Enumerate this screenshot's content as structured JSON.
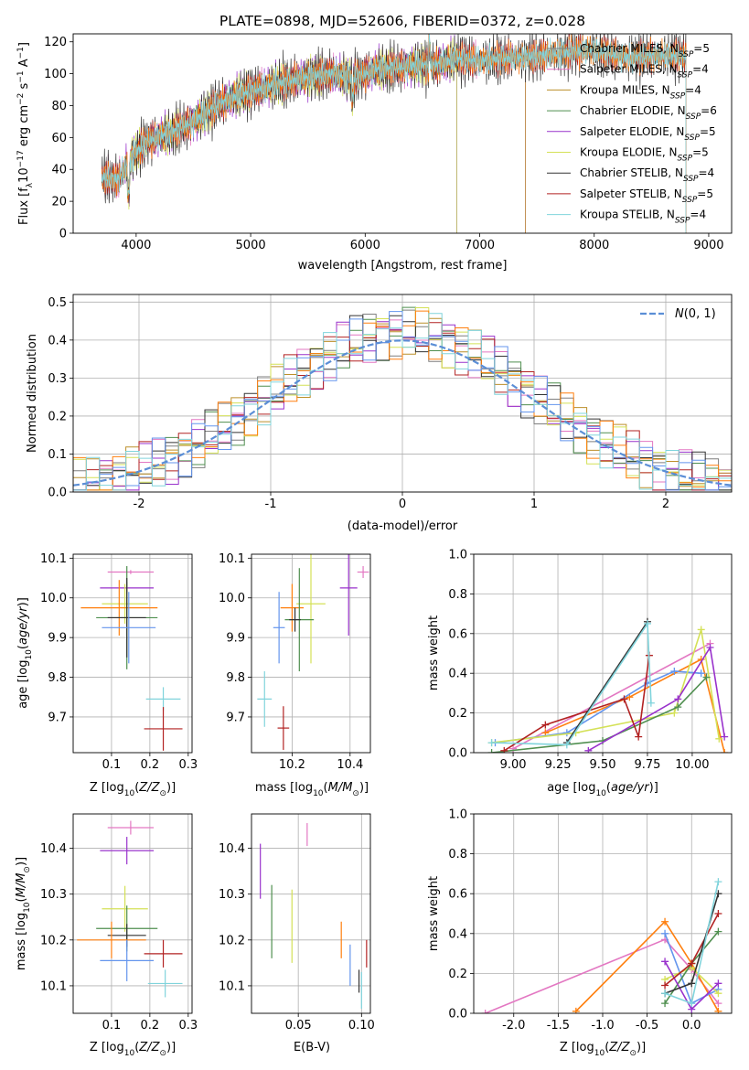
{
  "figure_title": "PLATE=0898, MJD=52606, FIBERID=0372, z=0.028",
  "colors": {
    "Chabrier MILES": "#7f7f7f",
    "Salpeter MILES": "#e377c2",
    "Kroupa MILES": "#bc8f2a",
    "Chabrier ELODIE": "#4f8f4f",
    "Salpeter ELODIE": "#9932cc",
    "Kroupa ELODIE": "#d4e157",
    "Chabrier STELIB": "#333333",
    "Salpeter STELIB": "#b22222",
    "Kroupa STELIB": "#80d4dc",
    "series_orange": "#ff7f0e",
    "series_blue": "#6495ed",
    "gaussian": "#5b8ed6"
  },
  "chart_data": [
    {
      "id": "spectrum",
      "type": "line",
      "title": "PLATE=0898, MJD=52606, FIBERID=0372, z=0.028",
      "xlabel": "wavelength [Angstrom, rest frame]",
      "ylabel": "Flux [f_λ 10^-17 erg cm^-2 s^-1 A^-1]",
      "xlim": [
        3450,
        9200
      ],
      "ylim": [
        0,
        125
      ],
      "xticks": [
        4000,
        5000,
        6000,
        7000,
        8000,
        9000
      ],
      "yticks": [
        0,
        20,
        40,
        60,
        80,
        100,
        120
      ],
      "grid": false,
      "legend_position": "upper-right",
      "legend": [
        "Chabrier MILES, N_SSP=5",
        "Salpeter MILES, N_SSP=4",
        "Kroupa MILES, N_SSP=4",
        "Chabrier ELODIE, N_SSP=6",
        "Salpeter ELODIE, N_SSP=5",
        "Kroupa ELODIE, N_SSP=5",
        "Chabrier STELIB, N_SSP=4",
        "Salpeter STELIB, N_SSP=5",
        "Kroupa STELIB, N_SSP=4"
      ],
      "continuum": [
        [
          3700,
          35
        ],
        [
          3850,
          34
        ],
        [
          3950,
          47
        ],
        [
          4100,
          58
        ],
        [
          4300,
          63
        ],
        [
          4500,
          70
        ],
        [
          4700,
          80
        ],
        [
          4900,
          87
        ],
        [
          5100,
          91
        ],
        [
          5300,
          95
        ],
        [
          5500,
          98
        ],
        [
          5700,
          100
        ],
        [
          5900,
          97
        ],
        [
          6100,
          103
        ],
        [
          6300,
          104
        ],
        [
          6500,
          106
        ],
        [
          6563,
          104
        ],
        [
          6800,
          110
        ],
        [
          7000,
          108
        ],
        [
          7200,
          110
        ],
        [
          7400,
          110
        ],
        [
          7700,
          113
        ],
        [
          8000,
          115
        ],
        [
          8300,
          110
        ],
        [
          8600,
          112
        ],
        [
          8800,
          111
        ],
        [
          9100,
          115
        ]
      ],
      "range_miles": [
        3700,
        7400
      ],
      "range_elodie": [
        3900,
        6800
      ],
      "range_stelib": [
        3700,
        8800
      ]
    },
    {
      "id": "residuals",
      "type": "histogram",
      "xlabel": "(data-model)/error",
      "ylabel": "Normed distribution",
      "xlim": [
        -2.5,
        2.5
      ],
      "ylim": [
        0,
        0.52
      ],
      "xticks": [
        -2,
        -1,
        0,
        1,
        2
      ],
      "yticks": [
        0.0,
        0.1,
        0.2,
        0.3,
        0.4,
        0.5
      ],
      "grid": true,
      "legend_position": "upper-right",
      "legend": [
        "N(0,1)"
      ],
      "bin_width": 0.1
    },
    {
      "id": "age_vs_z",
      "type": "scatter",
      "xlabel": "Z [log10(Z/Z_sun)]",
      "ylabel": "age  [log10(age/yr)]",
      "xlim": [
        0.0,
        0.31
      ],
      "ylim": [
        9.61,
        10.11
      ],
      "xticks": [
        0.1,
        0.2,
        0.3
      ],
      "yticks": [
        9.7,
        9.8,
        9.9,
        10.0,
        10.1
      ],
      "grid": true,
      "points": [
        {
          "series": "Salpeter MILES",
          "x": 0.15,
          "xerr": 0.06,
          "y": 10.065,
          "yerr": 0.005
        },
        {
          "series": "Salpeter ELODIE",
          "x": 0.14,
          "xerr": 0.07,
          "y": 10.025,
          "yerr": 0.015
        },
        {
          "series": "Kroupa ELODIE",
          "x": 0.135,
          "xerr": 0.06,
          "y": 9.985,
          "yerr": 0.05
        },
        {
          "series": "series_orange",
          "x": 0.12,
          "xerr": 0.1,
          "y": 9.975,
          "yerr": 0.07
        },
        {
          "series": "Chabrier ELODIE",
          "x": 0.14,
          "xerr": 0.08,
          "y": 9.95,
          "yerr": 0.13
        },
        {
          "series": "Chabrier STELIB",
          "x": 0.14,
          "xerr": 0.05,
          "y": 9.95,
          "yerr": 0.1
        },
        {
          "series": "series_blue",
          "x": 0.145,
          "xerr": 0.07,
          "y": 9.925,
          "yerr": 0.09
        },
        {
          "series": "Kroupa STELIB",
          "x": 0.235,
          "xerr": 0.045,
          "y": 9.745,
          "yerr": 0.03
        },
        {
          "series": "Salpeter STELIB",
          "x": 0.235,
          "xerr": 0.05,
          "y": 9.67,
          "yerr": 0.055
        }
      ]
    },
    {
      "id": "age_vs_mass",
      "type": "scatter",
      "xlabel": "mass [log10(M/M_sun)]",
      "ylabel": "",
      "xlim": [
        10.06,
        10.47
      ],
      "ylim": [
        9.61,
        10.11
      ],
      "xticks": [
        10.2,
        10.4
      ],
      "yticks": [
        9.7,
        9.8,
        9.9,
        10.0,
        10.1
      ],
      "grid": true,
      "points": [
        {
          "series": "Salpeter MILES",
          "x": 10.445,
          "xerr": 0.02,
          "y": 10.065,
          "yerr": 0.015
        },
        {
          "series": "Salpeter ELODIE",
          "x": 10.395,
          "xerr": 0.03,
          "y": 10.025,
          "yerr": 0.12
        },
        {
          "series": "Kroupa ELODIE",
          "x": 10.265,
          "xerr": 0.05,
          "y": 9.985,
          "yerr": 0.15
        },
        {
          "series": "series_orange",
          "x": 10.2,
          "xerr": 0.04,
          "y": 9.975,
          "yerr": 0.06
        },
        {
          "series": "Chabrier ELODIE",
          "x": 10.225,
          "xerr": 0.05,
          "y": 9.945,
          "yerr": 0.13
        },
        {
          "series": "Chabrier STELIB",
          "x": 10.21,
          "xerr": 0.02,
          "y": 9.945,
          "yerr": 0.03
        },
        {
          "series": "series_blue",
          "x": 10.155,
          "xerr": 0.02,
          "y": 9.925,
          "yerr": 0.09
        },
        {
          "series": "Kroupa STELIB",
          "x": 10.105,
          "xerr": 0.025,
          "y": 9.745,
          "yerr": 0.07
        },
        {
          "series": "Salpeter STELIB",
          "x": 10.17,
          "xerr": 0.02,
          "y": 9.672,
          "yerr": 0.055
        }
      ]
    },
    {
      "id": "weight_vs_age",
      "type": "line",
      "xlabel": "age  [log10(age/yr)]",
      "ylabel": "mass weight",
      "xlim": [
        8.78,
        10.22
      ],
      "ylim": [
        0.0,
        1.0
      ],
      "xticks": [
        9.0,
        9.25,
        9.5,
        9.75,
        10.0
      ],
      "yticks": [
        0.0,
        0.2,
        0.4,
        0.6,
        0.8,
        1.0
      ],
      "grid": true,
      "series": [
        {
          "name": "Salpeter MILES",
          "x": [
            9.0,
            10.1
          ],
          "y": [
            0.02,
            0.55
          ]
        },
        {
          "name": "series_orange",
          "x": [
            9.18,
            9.65,
            10.05,
            10.18
          ],
          "y": [
            0.1,
            0.28,
            0.47,
            0.0
          ]
        },
        {
          "name": "series_blue",
          "x": [
            8.9,
            9.3,
            9.75,
            9.9,
            10.05
          ],
          "y": [
            0.05,
            0.1,
            0.35,
            0.41,
            0.4
          ]
        },
        {
          "name": "Kroupa ELODIE",
          "x": [
            8.88,
            9.35,
            9.9,
            10.05,
            10.15
          ],
          "y": [
            0.05,
            0.1,
            0.2,
            0.62,
            0.07
          ]
        },
        {
          "name": "Chabrier ELODIE",
          "x": [
            8.88,
            9.5,
            9.92,
            10.08
          ],
          "y": [
            0.0,
            0.06,
            0.23,
            0.38
          ]
        },
        {
          "name": "Salpeter ELODIE",
          "x": [
            9.42,
            9.92,
            10.1,
            10.18
          ],
          "y": [
            0.01,
            0.27,
            0.53,
            0.08
          ]
        },
        {
          "name": "Salpeter STELIB",
          "x": [
            8.95,
            9.18,
            9.62,
            9.7,
            9.76
          ],
          "y": [
            0.01,
            0.14,
            0.27,
            0.08,
            0.49
          ]
        },
        {
          "name": "Chabrier STELIB",
          "x": [
            9.3,
            9.75
          ],
          "y": [
            0.05,
            0.66
          ]
        },
        {
          "name": "Kroupa STELIB",
          "x": [
            8.88,
            9.3,
            9.75,
            9.77
          ],
          "y": [
            0.05,
            0.04,
            0.65,
            0.25
          ]
        }
      ]
    },
    {
      "id": "mass_vs_z",
      "type": "scatter",
      "xlabel": "Z [log10(Z/Z_sun)]",
      "ylabel": "mass [log10(M/M_sun)]",
      "xlim": [
        0.0,
        0.31
      ],
      "ylim": [
        10.04,
        10.475
      ],
      "xticks": [
        0.1,
        0.2,
        0.3
      ],
      "yticks": [
        10.1,
        10.2,
        10.3,
        10.4
      ],
      "grid": true,
      "points": [
        {
          "series": "Salpeter MILES",
          "x": 0.15,
          "xerr": 0.06,
          "y": 10.445,
          "yerr": 0.015
        },
        {
          "series": "Salpeter ELODIE",
          "x": 0.14,
          "xerr": 0.07,
          "y": 10.395,
          "yerr": 0.03
        },
        {
          "series": "Kroupa ELODIE",
          "x": 0.135,
          "xerr": 0.06,
          "y": 10.268,
          "yerr": 0.05
        },
        {
          "series": "Chabrier ELODIE",
          "x": 0.14,
          "xerr": 0.08,
          "y": 10.225,
          "yerr": 0.05
        },
        {
          "series": "Chabrier STELIB",
          "x": 0.14,
          "xerr": 0.05,
          "y": 10.21,
          "yerr": 0.025
        },
        {
          "series": "series_orange",
          "x": 0.1,
          "xerr": 0.09,
          "y": 10.2,
          "yerr": 0.04
        },
        {
          "series": "Salpeter STELIB",
          "x": 0.235,
          "xerr": 0.05,
          "y": 10.17,
          "yerr": 0.03
        },
        {
          "series": "series_blue",
          "x": 0.14,
          "xerr": 0.07,
          "y": 10.155,
          "yerr": 0.045
        },
        {
          "series": "Kroupa STELIB",
          "x": 0.24,
          "xerr": 0.045,
          "y": 10.105,
          "yerr": 0.03
        }
      ]
    },
    {
      "id": "mass_vs_ebv",
      "type": "scatter",
      "xlabel": "E(B-V)",
      "ylabel": "",
      "xlim": [
        0.013,
        0.107
      ],
      "ylim": [
        10.04,
        10.475
      ],
      "xticks": [
        0.05,
        0.1
      ],
      "yticks": [
        10.1,
        10.2,
        10.3,
        10.4
      ],
      "grid": true,
      "points": [
        {
          "series": "Salpeter MILES",
          "x": 0.057,
          "y": 10.43,
          "yerr": 0.025
        },
        {
          "series": "Salpeter ELODIE",
          "x": 0.02,
          "y": 10.35,
          "yerr": 0.06
        },
        {
          "series": "Kroupa ELODIE",
          "x": 0.045,
          "y": 10.23,
          "yerr": 0.08
        },
        {
          "series": "Chabrier ELODIE",
          "x": 0.029,
          "y": 10.24,
          "yerr": 0.08
        },
        {
          "series": "series_orange",
          "x": 0.084,
          "y": 10.2,
          "yerr": 0.04
        },
        {
          "series": "series_blue",
          "x": 0.091,
          "y": 10.145,
          "yerr": 0.045
        },
        {
          "series": "Salpeter STELIB",
          "x": 0.104,
          "y": 10.17,
          "yerr": 0.03
        },
        {
          "series": "Chabrier STELIB",
          "x": 0.098,
          "y": 10.11,
          "yerr": 0.025
        },
        {
          "series": "Kroupa STELIB",
          "x": 0.1,
          "y": 10.09,
          "yerr": 0.04
        }
      ]
    },
    {
      "id": "weight_vs_z",
      "type": "line",
      "xlabel": "Z [log10(Z/Z_sun)]",
      "ylabel": "mass weight",
      "xlim": [
        -2.45,
        0.45
      ],
      "ylim": [
        0.0,
        1.0
      ],
      "xticks": [
        -2.0,
        -1.5,
        -1.0,
        -0.5,
        0.0
      ],
      "yticks": [
        0.0,
        0.2,
        0.4,
        0.6,
        0.8,
        1.0
      ],
      "grid": true,
      "series": [
        {
          "name": "Salpeter MILES",
          "x": [
            -2.32,
            -0.3,
            0.0,
            0.3
          ],
          "y": [
            0.0,
            0.37,
            0.22,
            0.05
          ]
        },
        {
          "name": "series_orange",
          "x": [
            -1.3,
            -0.3,
            0.0,
            0.3
          ],
          "y": [
            0.01,
            0.46,
            0.25,
            0.01
          ]
        },
        {
          "name": "series_blue",
          "x": [
            -0.3,
            0.0,
            0.3
          ],
          "y": [
            0.4,
            0.05,
            0.12
          ]
        },
        {
          "name": "Kroupa ELODIE",
          "x": [
            -0.3,
            0.0,
            0.3
          ],
          "y": [
            0.17,
            0.23,
            0.1
          ]
        },
        {
          "name": "Chabrier ELODIE",
          "x": [
            -0.3,
            0.0,
            0.3
          ],
          "y": [
            0.05,
            0.25,
            0.41
          ]
        },
        {
          "name": "Salpeter ELODIE",
          "x": [
            -0.3,
            0.0,
            0.3
          ],
          "y": [
            0.26,
            0.02,
            0.15
          ]
        },
        {
          "name": "Salpeter STELIB",
          "x": [
            -0.3,
            0.0,
            0.3
          ],
          "y": [
            0.14,
            0.25,
            0.5
          ]
        },
        {
          "name": "Chabrier STELIB",
          "x": [
            -0.3,
            0.0,
            0.3
          ],
          "y": [
            0.1,
            0.15,
            0.6
          ]
        },
        {
          "name": "Kroupa STELIB",
          "x": [
            -0.3,
            0.0,
            0.3
          ],
          "y": [
            0.1,
            0.05,
            0.66
          ]
        }
      ]
    }
  ]
}
